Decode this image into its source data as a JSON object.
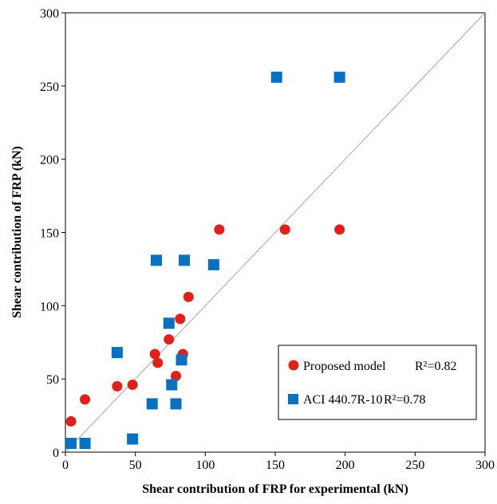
{
  "chart_data": {
    "type": "scatter",
    "title": "",
    "xlabel": "Shear contribution  of FRP for experimental (kN)",
    "ylabel": "Shear contribution  of FRP (kN)",
    "xlim": [
      0,
      300
    ],
    "ylim": [
      0,
      300
    ],
    "x_ticks": [
      "0",
      "50",
      "100",
      "150",
      "200",
      "250",
      "300"
    ],
    "y_ticks": [
      "0",
      "50",
      "100",
      "150",
      "200",
      "250",
      "300"
    ],
    "grid": false,
    "legend_position": "bottom-right",
    "reference_line": {
      "from": [
        0,
        0
      ],
      "to": [
        300,
        300
      ],
      "color": "#a6a6a6"
    },
    "series": [
      {
        "name": "Proposed model",
        "r2_label": "R²=0.82",
        "marker": "circle",
        "color": "#e0201b",
        "points": [
          [
            4,
            21
          ],
          [
            14,
            36
          ],
          [
            37,
            45
          ],
          [
            48,
            46
          ],
          [
            64,
            67
          ],
          [
            66,
            61
          ],
          [
            74,
            77
          ],
          [
            79,
            52
          ],
          [
            82,
            91
          ],
          [
            84,
            67
          ],
          [
            88,
            106
          ],
          [
            110,
            152
          ],
          [
            157,
            152
          ],
          [
            196,
            152
          ]
        ]
      },
      {
        "name": "ACI 440.7R-10",
        "r2_label": "R²=0.78",
        "marker": "square",
        "color": "#0a70c0",
        "points": [
          [
            4,
            6
          ],
          [
            14,
            6
          ],
          [
            37,
            68
          ],
          [
            48,
            9
          ],
          [
            62,
            33
          ],
          [
            65,
            131
          ],
          [
            74,
            88
          ],
          [
            76,
            46
          ],
          [
            79,
            33
          ],
          [
            83,
            63
          ],
          [
            85,
            131
          ],
          [
            106,
            128
          ],
          [
            151,
            256
          ],
          [
            196,
            256
          ]
        ]
      }
    ]
  }
}
